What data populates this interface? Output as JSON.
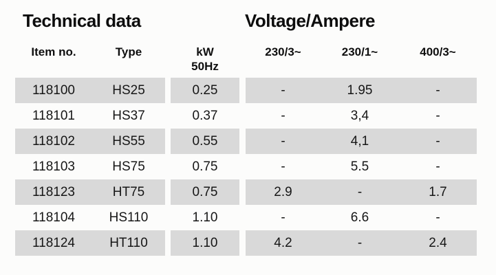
{
  "titles": {
    "left": "Technical data",
    "right": "Voltage/Ampere"
  },
  "table": {
    "headers": {
      "item_no": "Item no.",
      "type": "Type",
      "kw_line1": "kW",
      "kw_line2": "50Hz",
      "v230_3": "230/3~",
      "v230_1": "230/1~",
      "v400_3": "400/3~"
    },
    "rows": [
      {
        "item_no": "118100",
        "type": "HS25",
        "kw": "0.25",
        "v230_3": "-",
        "v230_1": "1.95",
        "v400_3": "-"
      },
      {
        "item_no": "118101",
        "type": "HS37",
        "kw": "0.37",
        "v230_3": "-",
        "v230_1": "3,4",
        "v400_3": "-"
      },
      {
        "item_no": "118102",
        "type": "HS55",
        "kw": "0.55",
        "v230_3": "-",
        "v230_1": "4,1",
        "v400_3": "-"
      },
      {
        "item_no": "118103",
        "type": "HS75",
        "kw": "0.75",
        "v230_3": "-",
        "v230_1": "5.5",
        "v400_3": "-"
      },
      {
        "item_no": "118123",
        "type": "HT75",
        "kw": "0.75",
        "v230_3": "2.9",
        "v230_1": "-",
        "v400_3": "1.7"
      },
      {
        "item_no": "118104",
        "type": "HS110",
        "kw": "1.10",
        "v230_3": "-",
        "v230_1": "6.6",
        "v400_3": "-"
      },
      {
        "item_no": "118124",
        "type": "HT110",
        "kw": "1.10",
        "v230_3": "4.2",
        "v230_1": "-",
        "v400_3": "2.4"
      }
    ],
    "colors": {
      "row_shaded": "#d9d9d9",
      "background": "#fcfcfb",
      "text": "#161616"
    }
  }
}
